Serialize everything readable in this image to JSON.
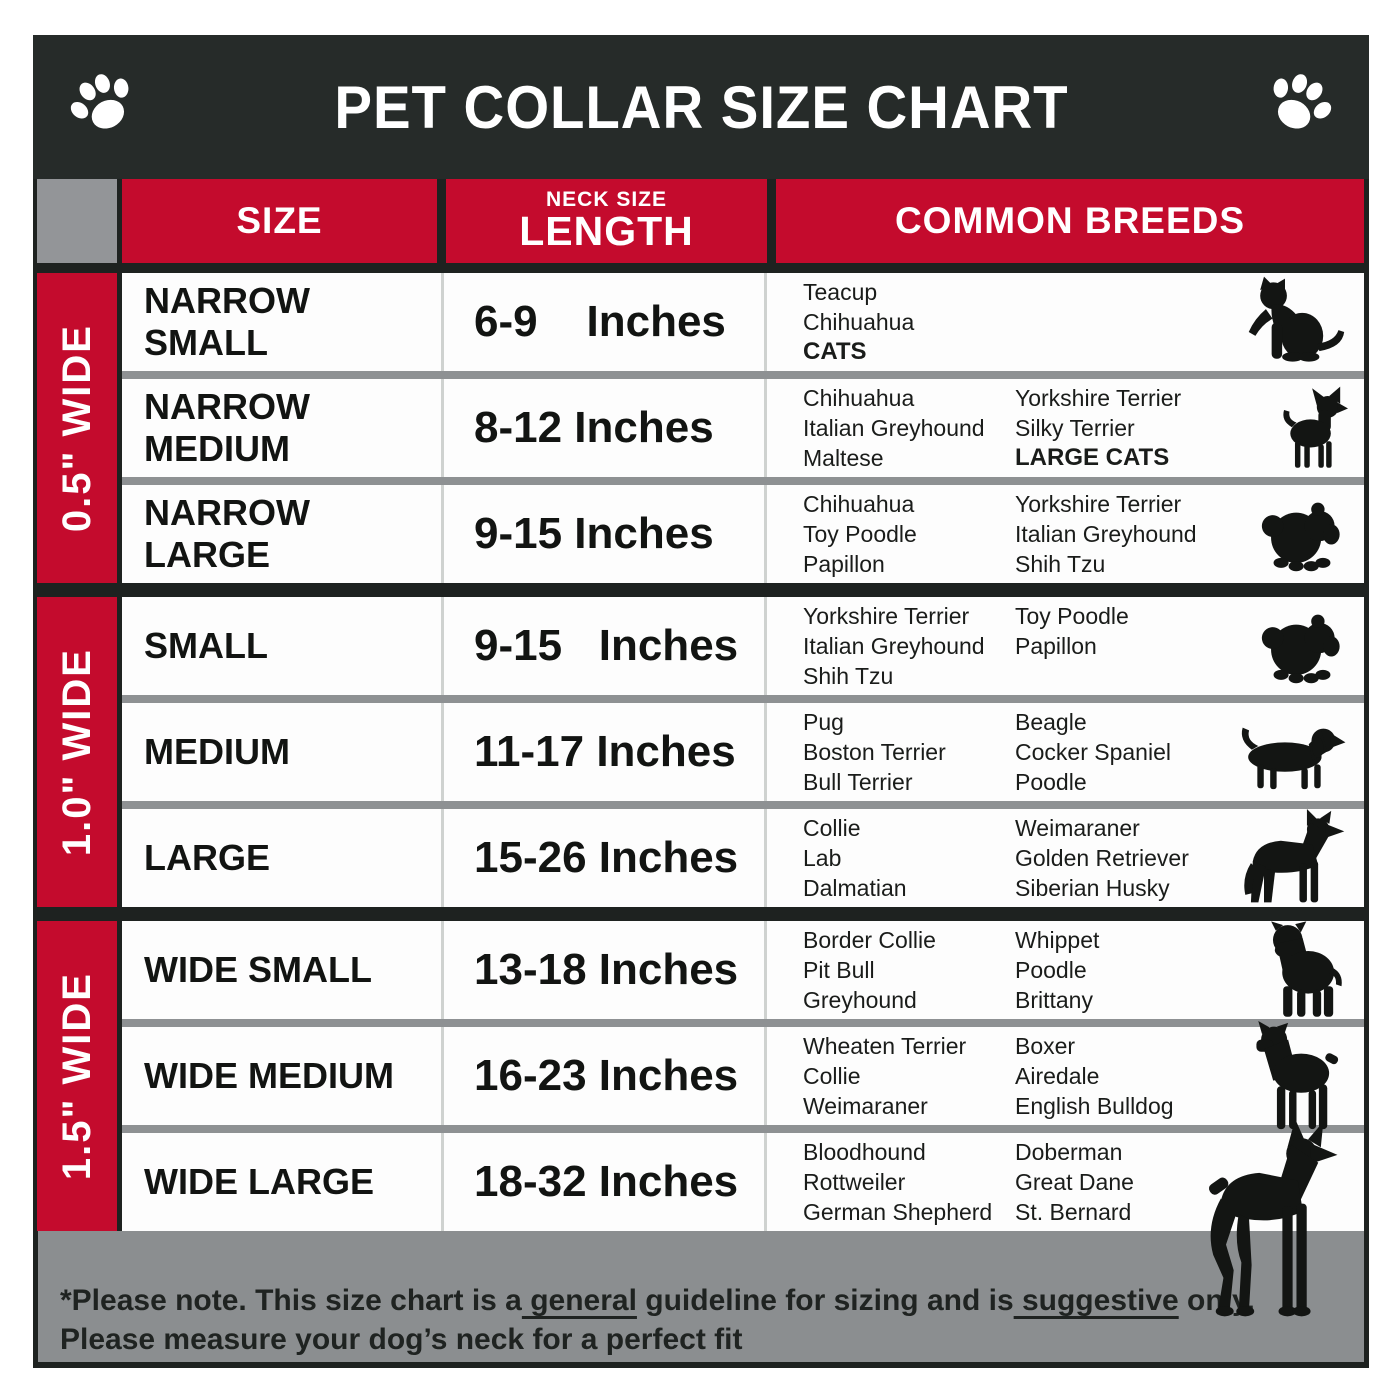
{
  "colors": {
    "accent_red": "#c40b2d",
    "banner_dark": "#262b29",
    "corner_gray": "#939598",
    "footer_gray": "#8b8e90",
    "row_separator_gray": "#8e9193",
    "silhouette_black": "#131513",
    "row_white": "#fdfdfd"
  },
  "header": {
    "title": "PET COLLAR SIZE CHART",
    "left_icon": "paw-icon",
    "right_icon": "paw-icon"
  },
  "chart_data": {
    "type": "table",
    "title": "PET COLLAR SIZE CHART",
    "column_headers": {
      "size": "SIZE",
      "neck_size": "NECK SIZE",
      "length": "LENGTH",
      "breeds": "COMMON BREEDS"
    },
    "sections": [
      {
        "width_label": "0.5\" WIDE",
        "rows": [
          {
            "size": "NARROW SMALL",
            "length": "6-9    Inches",
            "breeds_left": [
              {
                "text": "Teacup"
              },
              {
                "text": "Chihuahua"
              },
              {
                "text": "CATS",
                "bold": true
              }
            ],
            "breeds_right": [],
            "icon": "cat-silhouette"
          },
          {
            "size": "NARROW MEDIUM",
            "length": "8-12 Inches",
            "breeds_left": [
              {
                "text": "Chihuahua"
              },
              {
                "text": "Italian Greyhound"
              },
              {
                "text": "Maltese"
              }
            ],
            "breeds_right": [
              {
                "text": "Yorkshire Terrier"
              },
              {
                "text": "Silky Terrier"
              },
              {
                "text": "LARGE CATS",
                "bold": true
              }
            ],
            "icon": "chihuahua-silhouette"
          },
          {
            "size": "NARROW LARGE",
            "length": "9-15 Inches",
            "breeds_left": [
              {
                "text": "Chihuahua"
              },
              {
                "text": "Toy Poodle"
              },
              {
                "text": "Papillon"
              }
            ],
            "breeds_right": [
              {
                "text": "Yorkshire Terrier"
              },
              {
                "text": "Italian Greyhound"
              },
              {
                "text": "Shih Tzu"
              }
            ],
            "icon": "shih-tzu-silhouette"
          }
        ]
      },
      {
        "width_label": "1.0\" WIDE",
        "rows": [
          {
            "size": "SMALL",
            "length": "9-15   Inches",
            "breeds_left": [
              {
                "text": "Yorkshire Terrier"
              },
              {
                "text": "Italian Greyhound"
              },
              {
                "text": "Shih Tzu"
              }
            ],
            "breeds_right": [
              {
                "text": "Toy Poodle"
              },
              {
                "text": "Papillon"
              }
            ],
            "icon": "shih-tzu-silhouette"
          },
          {
            "size": "MEDIUM",
            "length": "11-17 Inches",
            "breeds_left": [
              {
                "text": "Pug"
              },
              {
                "text": "Boston Terrier"
              },
              {
                "text": "Bull Terrier"
              }
            ],
            "breeds_right": [
              {
                "text": "Beagle"
              },
              {
                "text": "Cocker Spaniel"
              },
              {
                "text": "Poodle"
              }
            ],
            "icon": "dachshund-silhouette"
          },
          {
            "size": "LARGE",
            "length": "15-26 Inches",
            "breeds_left": [
              {
                "text": "Collie"
              },
              {
                "text": "Lab"
              },
              {
                "text": "Dalmatian"
              }
            ],
            "breeds_right": [
              {
                "text": "Weimaraner"
              },
              {
                "text": "Golden Retriever"
              },
              {
                "text": "Siberian Husky"
              }
            ],
            "icon": "german-shepherd-silhouette"
          }
        ]
      },
      {
        "width_label": "1.5\" WIDE",
        "rows": [
          {
            "size": "WIDE SMALL",
            "length": "13-18 Inches",
            "breeds_left": [
              {
                "text": "Border Collie"
              },
              {
                "text": "Pit Bull"
              },
              {
                "text": "Greyhound"
              }
            ],
            "breeds_right": [
              {
                "text": "Whippet"
              },
              {
                "text": "Poodle"
              },
              {
                "text": "Brittany"
              }
            ],
            "icon": "pit-bull-silhouette"
          },
          {
            "size": "WIDE MEDIUM",
            "length": "16-23 Inches",
            "breeds_left": [
              {
                "text": "Wheaten Terrier"
              },
              {
                "text": "Collie"
              },
              {
                "text": "Weimaraner"
              }
            ],
            "breeds_right": [
              {
                "text": "Boxer"
              },
              {
                "text": "Airedale"
              },
              {
                "text": "English Bulldog"
              }
            ],
            "icon": "boxer-silhouette"
          },
          {
            "size": "WIDE LARGE",
            "length": "18-32 Inches",
            "breeds_left": [
              {
                "text": "Bloodhound"
              },
              {
                "text": "Rottweiler"
              },
              {
                "text": "German Shepherd"
              }
            ],
            "breeds_right": [
              {
                "text": "Doberman"
              },
              {
                "text": "Great Dane"
              },
              {
                "text": "St. Bernard"
              }
            ],
            "icon": "doberman-silhouette"
          }
        ]
      }
    ]
  },
  "footer": {
    "line1_segments": [
      {
        "text": "*Please note. This size chart is a"
      },
      {
        "text": " general",
        "underline": true
      },
      {
        "text": " guideline for sizing and is"
      },
      {
        "text": " suggestive",
        "underline": true
      },
      {
        "text": " only."
      }
    ],
    "line2": "Please measure your dog’s neck for a perfect fit"
  }
}
